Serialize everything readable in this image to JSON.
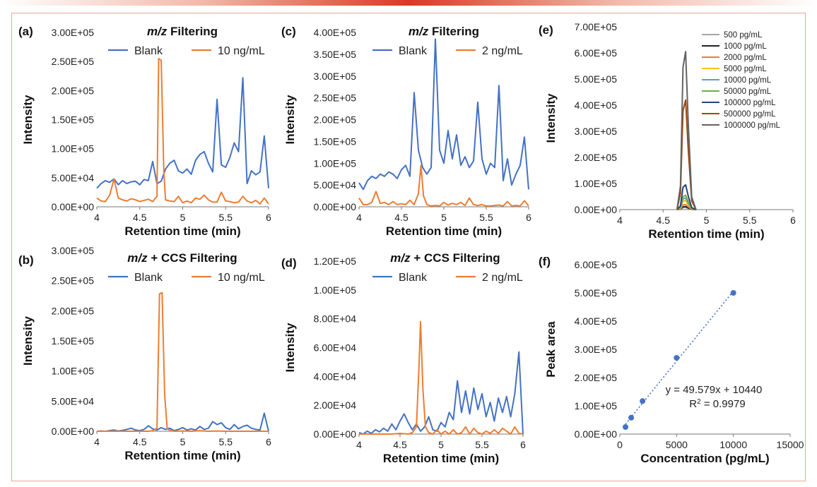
{
  "chart_data": [
    {
      "id": "a",
      "type": "line",
      "panel_label": "(a)",
      "title_italic": "m/z",
      "title_rest": " Filtering",
      "xlabel": "Retention time (min)",
      "ylabel": "Intensity",
      "xlim": [
        4,
        6
      ],
      "ylim": [
        0,
        300000
      ],
      "xticks": [
        4,
        4.5,
        5,
        5.5,
        6
      ],
      "xticklabels": [
        "4",
        "4.5",
        "5",
        "5.5",
        "6"
      ],
      "yticks": [
        0,
        50000,
        100000,
        150000,
        200000,
        250000,
        300000
      ],
      "yticklabels": [
        "0.00E+00",
        "5.00E+04",
        "1.00E+05",
        "1.50E+05",
        "2.00E+05",
        "2.50E+05",
        "3.00E+05"
      ],
      "legend": [
        "Blank",
        "10 ng/mL"
      ],
      "series": [
        {
          "name": "Blank",
          "color": "#4472c4",
          "x": [
            4.0,
            4.05,
            4.1,
            4.15,
            4.2,
            4.25,
            4.3,
            4.35,
            4.4,
            4.45,
            4.5,
            4.55,
            4.6,
            4.65,
            4.7,
            4.75,
            4.8,
            4.85,
            4.9,
            4.95,
            5.0,
            5.05,
            5.1,
            5.15,
            5.2,
            5.25,
            5.3,
            5.35,
            5.4,
            5.45,
            5.5,
            5.55,
            5.6,
            5.65,
            5.7,
            5.75,
            5.8,
            5.85,
            5.9,
            5.95,
            6.0
          ],
          "y": [
            32000,
            40000,
            45000,
            42000,
            48000,
            38000,
            45000,
            40000,
            43000,
            44000,
            38000,
            47000,
            45000,
            78000,
            40000,
            44000,
            65000,
            75000,
            80000,
            62000,
            58000,
            65000,
            56000,
            80000,
            90000,
            95000,
            75000,
            60000,
            185000,
            72000,
            68000,
            85000,
            110000,
            95000,
            222000,
            40000,
            62000,
            55000,
            60000,
            122000,
            32000
          ]
        },
        {
          "name": "10 ng/mL",
          "color": "#ed7d31",
          "x": [
            4.0,
            4.05,
            4.1,
            4.15,
            4.2,
            4.25,
            4.3,
            4.35,
            4.4,
            4.45,
            4.5,
            4.55,
            4.6,
            4.65,
            4.7,
            4.72,
            4.75,
            4.78,
            4.8,
            4.85,
            4.9,
            4.95,
            5.0,
            5.05,
            5.1,
            5.15,
            5.2,
            5.25,
            5.3,
            5.35,
            5.4,
            5.45,
            5.5,
            5.55,
            5.6,
            5.65,
            5.7,
            5.75,
            5.8,
            5.85,
            5.9,
            5.95,
            6.0
          ],
          "y": [
            15000,
            10000,
            9000,
            20000,
            48000,
            15000,
            12000,
            10000,
            14000,
            12000,
            9000,
            11000,
            13000,
            9000,
            18000,
            255000,
            252000,
            60000,
            12000,
            10000,
            9000,
            18000,
            7000,
            10000,
            7000,
            15000,
            13000,
            20000,
            12000,
            8000,
            8000,
            25000,
            10000,
            9000,
            7000,
            8000,
            18000,
            10000,
            7000,
            11000,
            5000,
            15000,
            5000
          ]
        }
      ]
    },
    {
      "id": "b",
      "type": "line",
      "panel_label": "(b)",
      "title_italic": "m/z",
      "title_rest": " + CCS Filtering",
      "xlabel": "Retention time (min)",
      "ylabel": "Intensity",
      "xlim": [
        4,
        6
      ],
      "ylim": [
        0,
        300000
      ],
      "xticks": [
        4,
        4.5,
        5,
        5.5,
        6
      ],
      "xticklabels": [
        "4",
        "4.5",
        "5",
        "5.5",
        "6"
      ],
      "yticks": [
        0,
        50000,
        100000,
        150000,
        200000,
        250000,
        300000
      ],
      "yticklabels": [
        "0.00E+00",
        "5.00E+04",
        "1.00E+05",
        "1.50E+05",
        "2.00E+05",
        "2.50E+05",
        "3.00E+05"
      ],
      "legend": [
        "Blank",
        "10 ng/mL"
      ],
      "series": [
        {
          "name": "Blank",
          "color": "#4472c4",
          "x": [
            4.0,
            4.05,
            4.1,
            4.15,
            4.2,
            4.25,
            4.3,
            4.35,
            4.4,
            4.45,
            4.5,
            4.55,
            4.6,
            4.65,
            4.7,
            4.75,
            4.8,
            4.85,
            4.9,
            4.95,
            5.0,
            5.05,
            5.1,
            5.15,
            5.2,
            5.25,
            5.3,
            5.35,
            5.4,
            5.45,
            5.5,
            5.55,
            5.6,
            5.65,
            5.7,
            5.75,
            5.8,
            5.85,
            5.9,
            5.95,
            6.0
          ],
          "y": [
            0,
            500,
            0,
            1000,
            2000,
            500,
            1500,
            3000,
            5000,
            2000,
            1000,
            3000,
            9000,
            4000,
            2000,
            6000,
            3000,
            5000,
            1000,
            3000,
            6000,
            2000,
            4000,
            2000,
            8000,
            3000,
            5000,
            16000,
            11000,
            14000,
            6000,
            3000,
            11000,
            4000,
            8000,
            10000,
            5000,
            3000,
            2000,
            30000,
            0
          ]
        },
        {
          "name": "10 ng/mL",
          "color": "#ed7d31",
          "x": [
            4.0,
            4.1,
            4.2,
            4.3,
            4.4,
            4.5,
            4.6,
            4.65,
            4.7,
            4.73,
            4.76,
            4.79,
            4.82,
            4.86,
            4.9,
            5.0,
            5.1,
            5.2,
            5.3,
            5.4,
            5.5,
            5.6,
            5.7,
            5.8,
            5.9,
            6.0
          ],
          "y": [
            0,
            0,
            0,
            0,
            0,
            0,
            0,
            1000,
            5000,
            228000,
            230000,
            60000,
            4000,
            1000,
            0,
            500,
            0,
            800,
            0,
            500,
            0,
            0,
            0,
            0,
            0,
            0
          ]
        }
      ]
    },
    {
      "id": "c",
      "type": "line",
      "panel_label": "(c)",
      "title_italic": "m/z",
      "title_rest": " Filtering",
      "xlabel": "Retention time (min)",
      "ylabel": "Intensity",
      "xlim": [
        4,
        6
      ],
      "ylim": [
        0,
        400000
      ],
      "xticks": [
        4,
        4.5,
        5,
        5.5,
        6
      ],
      "xticklabels": [
        "4",
        "4.5",
        "5",
        "5.5",
        "6"
      ],
      "yticks": [
        0,
        50000,
        100000,
        150000,
        200000,
        250000,
        300000,
        350000,
        400000
      ],
      "yticklabels": [
        "0.00E+00",
        "5.00E+04",
        "1.00E+05",
        "1.50E+05",
        "2.00E+05",
        "2.50E+05",
        "3.00E+05",
        "3.50E+05",
        "4.00E+05"
      ],
      "legend": [
        "Blank",
        "2 ng/mL"
      ],
      "series": [
        {
          "name": "Blank",
          "color": "#4472c4",
          "x": [
            4.0,
            4.05,
            4.1,
            4.15,
            4.2,
            4.25,
            4.3,
            4.35,
            4.4,
            4.45,
            4.5,
            4.55,
            4.6,
            4.65,
            4.7,
            4.75,
            4.8,
            4.85,
            4.9,
            4.95,
            5.0,
            5.05,
            5.1,
            5.15,
            5.2,
            5.25,
            5.3,
            5.35,
            5.4,
            5.45,
            5.5,
            5.55,
            5.6,
            5.65,
            5.7,
            5.75,
            5.8,
            5.85,
            5.9,
            5.95,
            6.0
          ],
          "y": [
            55000,
            40000,
            60000,
            70000,
            65000,
            75000,
            70000,
            80000,
            75000,
            65000,
            85000,
            95000,
            70000,
            262000,
            130000,
            90000,
            75000,
            90000,
            385000,
            130000,
            100000,
            175000,
            110000,
            165000,
            95000,
            115000,
            90000,
            105000,
            240000,
            110000,
            75000,
            100000,
            90000,
            278000,
            60000,
            110000,
            50000,
            75000,
            95000,
            160000,
            40000
          ]
        },
        {
          "name": "2 ng/mL",
          "color": "#ed7d31",
          "x": [
            4.0,
            4.05,
            4.1,
            4.15,
            4.2,
            4.25,
            4.3,
            4.35,
            4.4,
            4.45,
            4.5,
            4.55,
            4.6,
            4.65,
            4.7,
            4.73,
            4.76,
            4.8,
            4.85,
            4.9,
            4.95,
            5.0,
            5.05,
            5.1,
            5.15,
            5.2,
            5.25,
            5.3,
            5.35,
            5.4,
            5.45,
            5.5,
            5.55,
            5.6,
            5.65,
            5.7,
            5.75,
            5.8,
            5.85,
            5.9,
            5.95,
            6.0
          ],
          "y": [
            20000,
            5000,
            5000,
            10000,
            35000,
            8000,
            10000,
            5000,
            12000,
            5000,
            7000,
            5000,
            15000,
            5000,
            30000,
            95000,
            25000,
            5000,
            2000,
            3000,
            2000,
            10000,
            4000,
            8000,
            5000,
            10000,
            3000,
            20000,
            5000,
            3000,
            5000,
            2000,
            2000,
            3000,
            4000,
            2000,
            12000,
            2000,
            3000,
            2000,
            14000,
            2000
          ]
        }
      ]
    },
    {
      "id": "d",
      "type": "line",
      "panel_label": "(d)",
      "title_italic": "m/z",
      "title_rest": " + CCS Filtering",
      "xlabel": "Retention time (min)",
      "ylabel": "Intensity",
      "xlim": [
        4,
        6
      ],
      "ylim": [
        0,
        120000
      ],
      "xticks": [
        4,
        4.5,
        5,
        5.5,
        6
      ],
      "xticklabels": [
        "4",
        "4.5",
        "5",
        "5.5",
        "6"
      ],
      "yticks": [
        0,
        20000,
        40000,
        60000,
        80000,
        100000,
        120000
      ],
      "yticklabels": [
        "0.00E+00",
        "2.00E+04",
        "4.00E+04",
        "6.00E+04",
        "8.00E+04",
        "1.00E+05",
        "1.20E+05"
      ],
      "legend": [
        "Blank",
        "2 ng/mL"
      ],
      "series": [
        {
          "name": "Blank",
          "color": "#4472c4",
          "x": [
            4.0,
            4.05,
            4.1,
            4.15,
            4.2,
            4.25,
            4.3,
            4.35,
            4.4,
            4.45,
            4.5,
            4.55,
            4.6,
            4.65,
            4.7,
            4.75,
            4.8,
            4.85,
            4.9,
            4.95,
            5.0,
            5.05,
            5.1,
            5.15,
            5.2,
            5.25,
            5.3,
            5.35,
            5.4,
            5.45,
            5.5,
            5.55,
            5.6,
            5.65,
            5.7,
            5.75,
            5.8,
            5.85,
            5.9,
            5.95,
            6.0
          ],
          "y": [
            1000,
            0,
            2000,
            500,
            3000,
            1500,
            4000,
            2000,
            7000,
            3000,
            9000,
            14000,
            8000,
            3000,
            7000,
            2000,
            5000,
            12000,
            3000,
            2000,
            8000,
            5000,
            15000,
            10000,
            37000,
            15000,
            30000,
            14000,
            32000,
            17000,
            28000,
            12000,
            22000,
            9000,
            25000,
            15000,
            26000,
            12000,
            28000,
            57000,
            0
          ]
        },
        {
          "name": "2 ng/mL",
          "color": "#ed7d31",
          "x": [
            4.0,
            4.1,
            4.2,
            4.3,
            4.4,
            4.5,
            4.6,
            4.65,
            4.7,
            4.73,
            4.75,
            4.78,
            4.81,
            4.85,
            4.9,
            4.95,
            5.0,
            5.05,
            5.1,
            5.15,
            5.2,
            5.25,
            5.3,
            5.35,
            5.4,
            5.45,
            5.5,
            5.55,
            5.6,
            5.65,
            5.7,
            5.75,
            5.8,
            5.85,
            5.9,
            5.95,
            6.0
          ],
          "y": [
            0,
            0,
            0,
            0,
            0,
            500,
            0,
            1000,
            5000,
            45000,
            78000,
            30000,
            5000,
            1000,
            0,
            3000,
            0,
            2000,
            0,
            3000,
            0,
            1000,
            5000,
            0,
            4000,
            1000,
            0,
            2000,
            500,
            3000,
            500,
            4000,
            2000,
            0,
            5000,
            500,
            0
          ]
        }
      ]
    },
    {
      "id": "e",
      "type": "line",
      "panel_label": "(e)",
      "xlabel": "Retention time (min)",
      "ylabel": "Intensity",
      "xlim": [
        4,
        6
      ],
      "ylim": [
        0,
        700000
      ],
      "xticks": [
        4,
        4.5,
        5,
        5.5,
        6
      ],
      "xticklabels": [
        "4",
        "4.5",
        "5",
        "5.5",
        "6"
      ],
      "yticks": [
        0,
        100000,
        200000,
        300000,
        400000,
        500000,
        600000,
        700000
      ],
      "yticklabels": [
        "0.00E+00",
        "1.00E+05",
        "2.00E+05",
        "3.00E+05",
        "4.00E+05",
        "5.00E+05",
        "6.00E+05",
        "7.00E+05"
      ],
      "legend": [
        "500 pg/mL",
        "1000 pg/mL",
        "2000 pg/mL",
        "5000 pg/mL",
        "10000 pg/mL",
        "50000 pg/mL",
        "100000 pg/mL",
        "500000 pg/mL",
        "1000000 pg/mL"
      ],
      "peak_x": [
        4.66,
        4.7,
        4.73,
        4.76,
        4.79,
        4.83,
        4.88
      ],
      "series": [
        {
          "name": "500 pg/mL",
          "color": "#a5a5a5",
          "peak": 8000
        },
        {
          "name": "1000 pg/mL",
          "color": "#222222",
          "peak": 12000
        },
        {
          "name": "2000 pg/mL",
          "color": "#ed7d31",
          "peak": 20000
        },
        {
          "name": "5000 pg/mL",
          "color": "#ffc000",
          "peak": 35000
        },
        {
          "name": "10000 pg/mL",
          "color": "#5b9bd5",
          "peak": 45000
        },
        {
          "name": "50000 pg/mL",
          "color": "#70ad47",
          "peak": 55000
        },
        {
          "name": "100000 pg/mL",
          "color": "#264478",
          "peak": 95000
        },
        {
          "name": "500000 pg/mL",
          "color": "#9e480e",
          "peak": 420000
        },
        {
          "name": "1000000 pg/mL",
          "color": "#636363",
          "peak": 605000
        }
      ]
    },
    {
      "id": "f",
      "type": "scatter",
      "panel_label": "(f)",
      "xlabel": "Concentration (pg/mL)",
      "ylabel": "Peak area",
      "xlim": [
        0,
        15000
      ],
      "ylim": [
        0,
        600000
      ],
      "xticks": [
        0,
        5000,
        10000,
        15000
      ],
      "xticklabels": [
        "0",
        "5000",
        "10000",
        "15000"
      ],
      "yticks": [
        0,
        100000,
        200000,
        300000,
        400000,
        500000,
        600000
      ],
      "yticklabels": [
        "0.00E+00",
        "1.00E+05",
        "2.00E+05",
        "3.00E+05",
        "4.00E+05",
        "5.00E+05",
        "6.00E+05"
      ],
      "points": {
        "x": [
          500,
          1000,
          2000,
          5000,
          10000
        ],
        "y": [
          25000,
          58000,
          117000,
          270000,
          500000
        ]
      },
      "point_color": "#4472c4",
      "trendline": {
        "slope": 49.579,
        "intercept": 10440,
        "x_range": [
          500,
          10000
        ]
      },
      "equation": "y = 49.579x + 10440",
      "r2_prefix": "R",
      "r2_sup": "2",
      "r2_value": " = 0.9979"
    }
  ]
}
